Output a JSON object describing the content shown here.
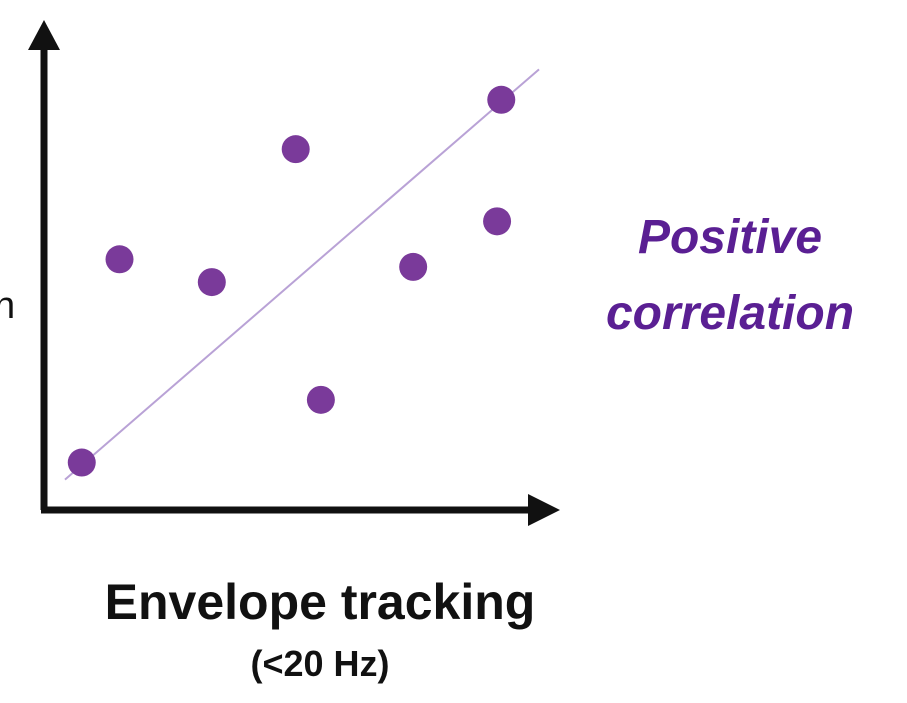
{
  "chart_data": {
    "type": "scatter",
    "xlabel": "Envelope tracking",
    "xlabel_sub": "(<20 Hz)",
    "ylabel_fragment": "n",
    "annotation": {
      "line1": "Positive",
      "line2": "correlation"
    },
    "points": [
      {
        "x": 0.1,
        "y": 0.85
      },
      {
        "x": 1.0,
        "y": 6.2
      },
      {
        "x": 3.2,
        "y": 5.6
      },
      {
        "x": 5.2,
        "y": 9.1
      },
      {
        "x": 5.8,
        "y": 2.5
      },
      {
        "x": 8.0,
        "y": 6.0
      },
      {
        "x": 10.0,
        "y": 7.2
      },
      {
        "x": 10.1,
        "y": 10.4
      }
    ],
    "trend_line": {
      "x1": -0.3,
      "y1": 0.4,
      "x2": 11.0,
      "y2": 11.2
    },
    "xlim": [
      -0.8,
      11.5
    ],
    "ylim": [
      -0.4,
      12.5
    ],
    "grid": false,
    "colors": {
      "points": "#7a3a9a",
      "trend_line": "#b9a2d6",
      "axes": "#111111",
      "annotation": "#5a1f93"
    }
  }
}
